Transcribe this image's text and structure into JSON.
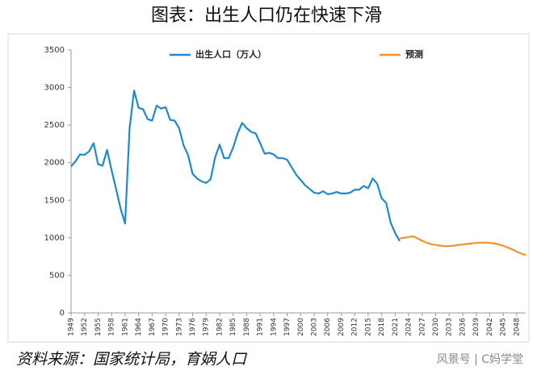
{
  "chart_data": {
    "type": "line",
    "title": "图表：出生人口仍在快速下滑",
    "source": "资料来源：国家统计局，育娲人口",
    "watermark": "风景号 | C妈学堂",
    "x": [
      1949,
      1950,
      1951,
      1952,
      1953,
      1954,
      1955,
      1956,
      1957,
      1958,
      1959,
      1960,
      1961,
      1962,
      1963,
      1964,
      1965,
      1966,
      1967,
      1968,
      1969,
      1970,
      1971,
      1972,
      1973,
      1974,
      1975,
      1976,
      1977,
      1978,
      1979,
      1980,
      1981,
      1982,
      1983,
      1984,
      1985,
      1986,
      1987,
      1988,
      1989,
      1990,
      1991,
      1992,
      1993,
      1994,
      1995,
      1996,
      1997,
      1998,
      1999,
      2000,
      2001,
      2002,
      2003,
      2004,
      2005,
      2006,
      2007,
      2008,
      2009,
      2010,
      2011,
      2012,
      2013,
      2014,
      2015,
      2016,
      2017,
      2018,
      2019,
      2020,
      2021,
      2022,
      2023,
      2024,
      2025,
      2026,
      2027,
      2028,
      2029,
      2030,
      2031,
      2032,
      2033,
      2034,
      2035,
      2036,
      2037,
      2038,
      2039,
      2040,
      2041,
      2042,
      2043,
      2044,
      2045,
      2046,
      2047,
      2048,
      2049,
      2050
    ],
    "series": [
      {
        "name": "出生人口（万人）",
        "color": "#1f8ac9",
        "values": [
          1950,
          2020,
          2110,
          2105,
          2150,
          2260,
          1980,
          1960,
          2170,
          1900,
          1650,
          1390,
          1190,
          2460,
          2960,
          2730,
          2710,
          2580,
          2560,
          2760,
          2720,
          2740,
          2570,
          2560,
          2460,
          2230,
          2100,
          1850,
          1790,
          1750,
          1730,
          1780,
          2070,
          2240,
          2060,
          2060,
          2200,
          2390,
          2530,
          2460,
          2410,
          2390,
          2260,
          2120,
          2130,
          2110,
          2060,
          2060,
          2040,
          1940,
          1840,
          1770,
          1700,
          1650,
          1600,
          1590,
          1620,
          1580,
          1590,
          1610,
          1590,
          1590,
          1600,
          1640,
          1640,
          1690,
          1660,
          1790,
          1720,
          1523,
          1465,
          1200,
          1062,
          956,
          null,
          null,
          null,
          null,
          null,
          null,
          null,
          null,
          null,
          null,
          null,
          null,
          null,
          null,
          null,
          null,
          null,
          null,
          null,
          null,
          null,
          null,
          null,
          null,
          null,
          null,
          null,
          null
        ]
      },
      {
        "name": "预测",
        "color": "#f0922e",
        "values": [
          null,
          null,
          null,
          null,
          null,
          null,
          null,
          null,
          null,
          null,
          null,
          null,
          null,
          null,
          null,
          null,
          null,
          null,
          null,
          null,
          null,
          null,
          null,
          null,
          null,
          null,
          null,
          null,
          null,
          null,
          null,
          null,
          null,
          null,
          null,
          null,
          null,
          null,
          null,
          null,
          null,
          null,
          null,
          null,
          null,
          null,
          null,
          null,
          null,
          null,
          null,
          null,
          null,
          null,
          null,
          null,
          null,
          null,
          null,
          null,
          null,
          null,
          null,
          null,
          null,
          null,
          null,
          null,
          null,
          null,
          null,
          null,
          null,
          990,
          1000,
          1010,
          1020,
          990,
          960,
          935,
          915,
          905,
          895,
          890,
          890,
          895,
          905,
          910,
          918,
          925,
          932,
          935,
          935,
          932,
          925,
          910,
          895,
          870,
          845,
          815,
          790,
          770
        ]
      }
    ],
    "xlim": [
      1949,
      2050
    ],
    "ylim": [
      0,
      3500
    ],
    "xticks": [
      1949,
      1952,
      1955,
      1958,
      1961,
      1964,
      1967,
      1970,
      1973,
      1976,
      1979,
      1982,
      1985,
      1988,
      1991,
      1994,
      1997,
      2000,
      2003,
      2006,
      2009,
      2012,
      2015,
      2018,
      2021,
      2024,
      2027,
      2030,
      2033,
      2036,
      2039,
      2042,
      2045,
      2048
    ],
    "yticks": [
      0,
      500,
      1000,
      1500,
      2000,
      2500,
      3000,
      3500
    ]
  }
}
